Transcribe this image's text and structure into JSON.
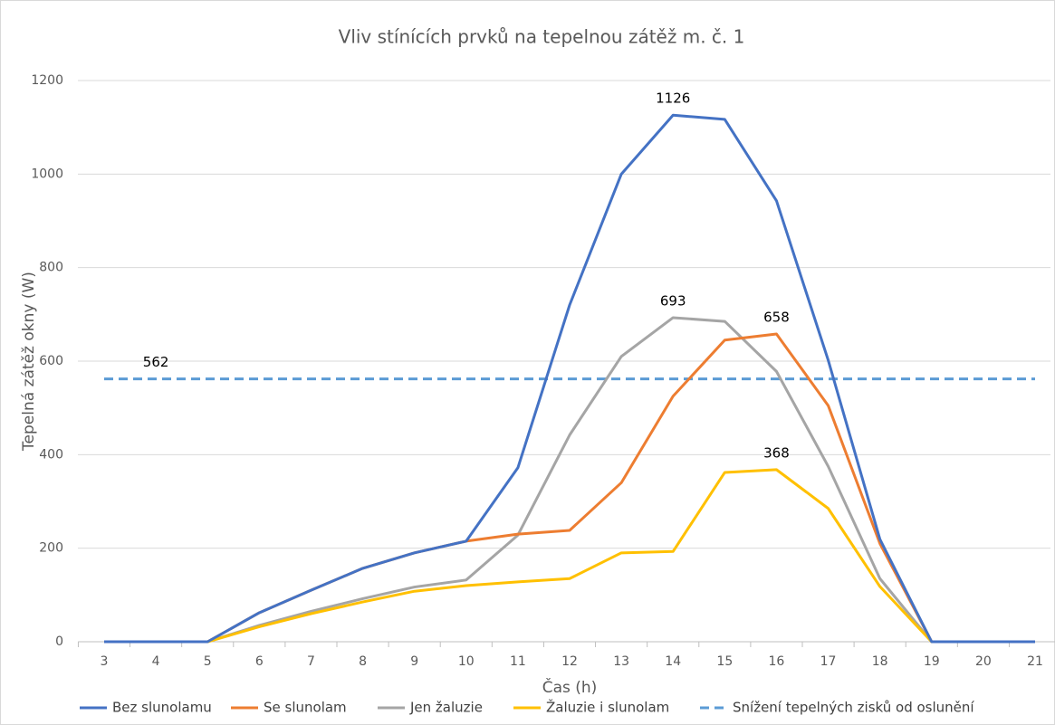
{
  "chart_data": {
    "type": "line",
    "title": "Vliv stínících prvků na tepelnou zátěž m. č. 1",
    "x_label": "Čas (h)",
    "y_label": "Tepelná zátěž okny (W)",
    "categories": [
      3,
      4,
      5,
      6,
      7,
      8,
      9,
      10,
      11,
      12,
      13,
      14,
      15,
      16,
      17,
      18,
      19,
      20,
      21
    ],
    "ylim": [
      0,
      1200
    ],
    "yticks": [
      0,
      200,
      400,
      600,
      800,
      1000,
      1200
    ],
    "grid": true,
    "legend": "bottom",
    "series": [
      {
        "name": "Bez slunolamu",
        "color": "#4472c4",
        "values": [
          0,
          0,
          0,
          62,
          110,
          157,
          190,
          215,
          372,
          720,
          1000,
          1126,
          1117,
          943,
          602,
          219,
          0,
          0,
          0
        ],
        "value_labels": [
          null,
          null,
          null,
          null,
          null,
          null,
          null,
          null,
          null,
          null,
          null,
          "1126",
          null,
          null,
          null,
          null,
          null,
          null,
          null
        ]
      },
      {
        "name": "Se slunolam",
        "color": "#ed7d31",
        "values": [
          0,
          0,
          0,
          62,
          110,
          157,
          190,
          215,
          230,
          238,
          340,
          525,
          645,
          658,
          505,
          210,
          0,
          0,
          0
        ],
        "value_labels": [
          null,
          null,
          null,
          null,
          null,
          null,
          null,
          null,
          null,
          null,
          null,
          null,
          null,
          "658",
          null,
          null,
          null,
          null,
          null
        ]
      },
      {
        "name": "Jen žaluzie",
        "color": "#a5a5a5",
        "values": [
          0,
          0,
          0,
          35,
          65,
          92,
          117,
          132,
          228,
          442,
          610,
          693,
          685,
          578,
          375,
          135,
          0,
          0,
          0
        ],
        "value_labels": [
          null,
          null,
          null,
          null,
          null,
          null,
          null,
          null,
          null,
          null,
          null,
          "693",
          null,
          null,
          null,
          null,
          null,
          null,
          null
        ]
      },
      {
        "name": "Žaluzie i slunolam",
        "color": "#ffc000",
        "values": [
          0,
          0,
          0,
          32,
          60,
          85,
          108,
          120,
          128,
          135,
          190,
          193,
          362,
          368,
          285,
          118,
          0,
          0,
          0
        ],
        "value_labels": [
          null,
          null,
          null,
          null,
          null,
          null,
          null,
          null,
          null,
          null,
          null,
          null,
          null,
          "368",
          null,
          null,
          null,
          null,
          null
        ]
      },
      {
        "name": "Snížení tepelných zisků od oslunění",
        "color": "#5b9bd5",
        "dashed": true,
        "values": [
          562,
          562,
          562,
          562,
          562,
          562,
          562,
          562,
          562,
          562,
          562,
          562,
          562,
          562,
          562,
          562,
          562,
          562,
          562
        ],
        "value_labels": [
          null,
          "562",
          null,
          null,
          null,
          null,
          null,
          null,
          null,
          null,
          null,
          null,
          null,
          null,
          null,
          null,
          null,
          null,
          null
        ]
      }
    ]
  }
}
